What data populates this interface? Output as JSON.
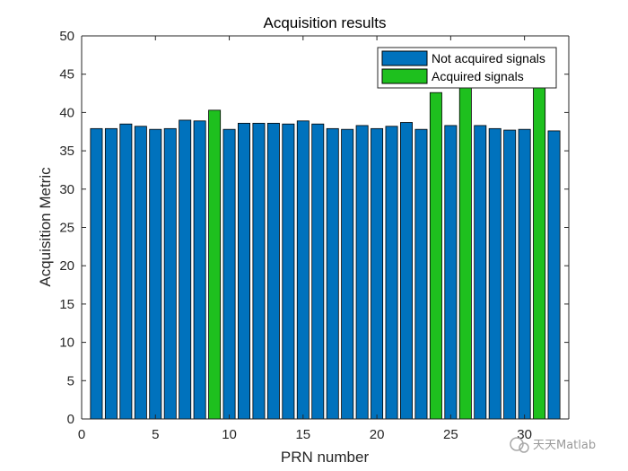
{
  "chart_data": {
    "type": "bar",
    "title": "Acquisition results",
    "xlabel": "PRN number",
    "ylabel": "Acquisition Metric",
    "xlim": [
      0,
      33
    ],
    "ylim": [
      0,
      50
    ],
    "xticks": [
      0,
      5,
      10,
      15,
      20,
      25,
      30
    ],
    "yticks": [
      0,
      5,
      10,
      15,
      20,
      25,
      30,
      35,
      40,
      45,
      50
    ],
    "grid": false,
    "legend_position": "top-right",
    "categories": [
      1,
      2,
      3,
      4,
      5,
      6,
      7,
      8,
      9,
      10,
      11,
      12,
      13,
      14,
      15,
      16,
      17,
      18,
      19,
      20,
      21,
      22,
      23,
      24,
      25,
      26,
      27,
      28,
      29,
      30,
      31,
      32
    ],
    "values": [
      37.9,
      37.9,
      38.5,
      38.2,
      37.8,
      37.9,
      39.0,
      38.9,
      40.3,
      37.8,
      38.6,
      38.6,
      38.6,
      38.5,
      38.9,
      38.5,
      37.9,
      37.8,
      38.3,
      37.9,
      38.2,
      38.7,
      37.8,
      42.6,
      38.3,
      43.6,
      38.3,
      37.9,
      37.7,
      37.8,
      43.5,
      37.6
    ],
    "acquired": [
      false,
      false,
      false,
      false,
      false,
      false,
      false,
      false,
      true,
      false,
      false,
      false,
      false,
      false,
      false,
      false,
      false,
      false,
      false,
      false,
      false,
      false,
      false,
      true,
      false,
      true,
      false,
      false,
      false,
      false,
      true,
      false
    ],
    "series": [
      {
        "name": "Not acquired signals",
        "color": "#0072bd"
      },
      {
        "name": "Acquired signals",
        "color": "#1ec01e"
      }
    ]
  },
  "watermark": "天天Matlab"
}
